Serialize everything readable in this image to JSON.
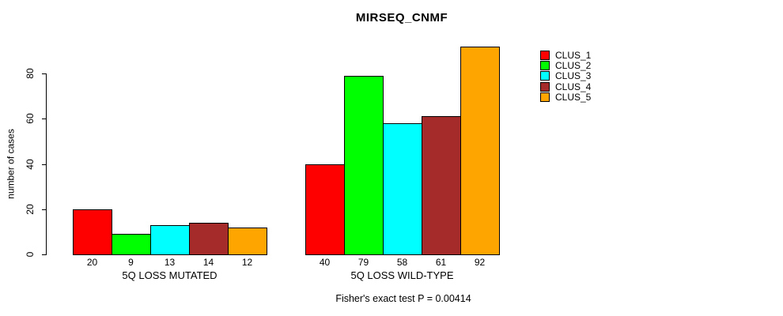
{
  "title": "MIRSEQ_CNMF",
  "chart_data": {
    "type": "bar",
    "title": "MIRSEQ_CNMF",
    "ylabel": "number of cases",
    "xlabel": "",
    "yticks": [
      0,
      20,
      40,
      60,
      80
    ],
    "ylim": [
      0,
      92
    ],
    "grid": false,
    "legend_position": "right",
    "categories": [
      "5Q LOSS MUTATED",
      "5Q LOSS WILD-TYPE"
    ],
    "series": [
      {
        "name": "CLUS_1",
        "color": "#FF0000",
        "values": [
          20,
          40
        ]
      },
      {
        "name": "CLUS_2",
        "color": "#00FF00",
        "values": [
          9,
          79
        ]
      },
      {
        "name": "CLUS_3",
        "color": "#00FFFF",
        "values": [
          13,
          58
        ]
      },
      {
        "name": "CLUS_4",
        "color": "#A52A2A",
        "values": [
          14,
          61
        ]
      },
      {
        "name": "CLUS_5",
        "color": "#FFA500",
        "values": [
          12,
          92
        ]
      }
    ],
    "groups": [
      {
        "label": "5Q LOSS MUTATED",
        "values": [
          20,
          9,
          13,
          14,
          12
        ]
      },
      {
        "label": "5Q LOSS WILD-TYPE",
        "values": [
          40,
          79,
          58,
          61,
          92
        ]
      }
    ],
    "bar_value_labels_shown": true,
    "annotation": "Fisher's exact test P = 0.00414"
  },
  "legend": {
    "items": [
      {
        "label": "CLUS_1",
        "color": "#FF0000"
      },
      {
        "label": "CLUS_2",
        "color": "#00FF00"
      },
      {
        "label": "CLUS_3",
        "color": "#00FFFF"
      },
      {
        "label": "CLUS_4",
        "color": "#A52A2A"
      },
      {
        "label": "CLUS_5",
        "color": "#FFA500"
      }
    ]
  }
}
